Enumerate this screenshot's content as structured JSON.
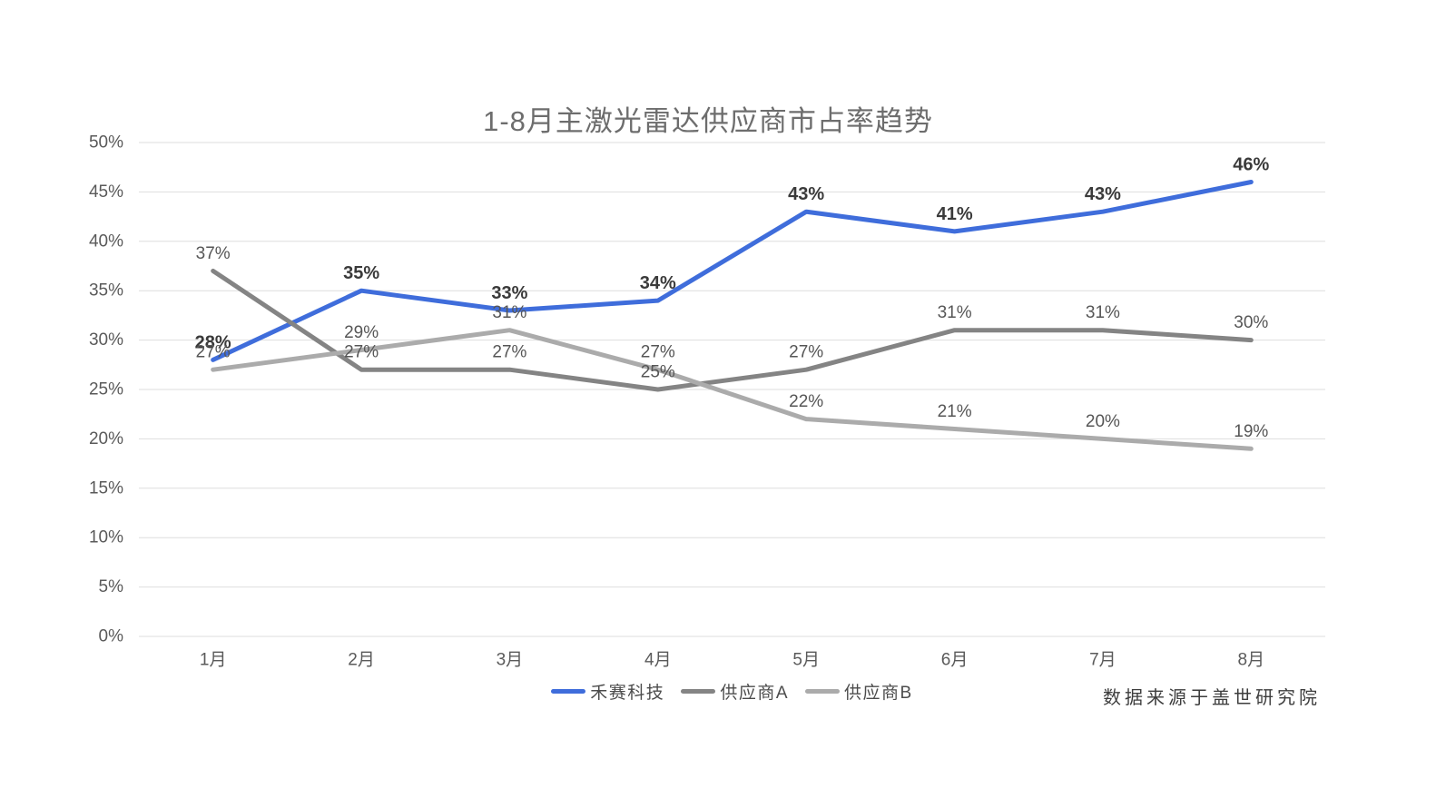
{
  "title": "1-8月主激光雷达供应商市占率趋势",
  "source_note": "数据来源于盖世研究院",
  "chart_data": {
    "type": "line",
    "title": "1-8月主激光雷达供应商市占率趋势",
    "categories": [
      "1月",
      "2月",
      "3月",
      "4月",
      "5月",
      "6月",
      "7月",
      "8月"
    ],
    "series": [
      {
        "name": "禾赛科技",
        "slug": "hesai",
        "color": "#3f6ddb",
        "emphasized_labels": true,
        "values": [
          28,
          35,
          33,
          34,
          43,
          41,
          43,
          46
        ]
      },
      {
        "name": "供应商A",
        "slug": "supplier-a",
        "color": "#848484",
        "emphasized_labels": false,
        "values": [
          37,
          27,
          27,
          25,
          27,
          31,
          31,
          30
        ]
      },
      {
        "name": "供应商B",
        "slug": "supplier-b",
        "color": "#ababab",
        "emphasized_labels": false,
        "values": [
          27,
          29,
          31,
          27,
          22,
          21,
          20,
          19
        ]
      }
    ],
    "xlabel": "",
    "ylabel": "",
    "ylim": [
      0,
      50
    ],
    "ytick_step": 5,
    "ytick_labels": [
      "0%",
      "5%",
      "10%",
      "15%",
      "20%",
      "25%",
      "30%",
      "35%",
      "40%",
      "45%",
      "50%"
    ],
    "ytick_format": "percent",
    "grid": true,
    "grid_color": "#dedede",
    "data_labels": true,
    "label_unit": "%",
    "legend_position": "bottom",
    "source_note": "数据来源于盖世研究院"
  }
}
